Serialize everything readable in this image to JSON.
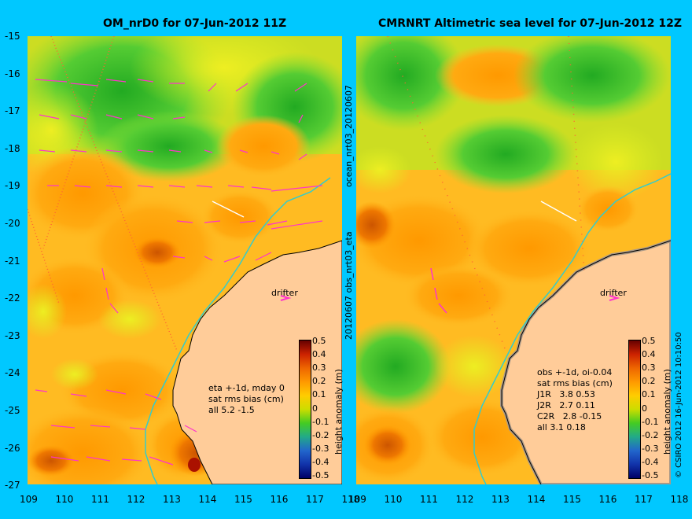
{
  "left_panel": {
    "title": "OM_nrD0 for 07-Jun-2012 11Z",
    "stats_lines": [
      "eta +-1d, mday 0",
      "sat rms bias (cm)",
      "all 5.2 -1.5"
    ],
    "drifter_label": "drifter"
  },
  "right_panel": {
    "title": "CMRNRT Altimetric sea level  for 07-Jun-2012 12Z",
    "stats_lines": [
      "obs +-1d, oi-0.04",
      "sat rms bias (cm)",
      "J1R   3.8 0.53",
      "J2R   2.7 0.11",
      "C2R   2.8 -0.15",
      "all 3.1 0.18"
    ],
    "drifter_label": "drifter"
  },
  "axes": {
    "lat_ticks": [
      "-15",
      "-16",
      "-17",
      "-18",
      "-19",
      "-20",
      "-21",
      "-22",
      "-23",
      "-24",
      "-25",
      "-26",
      "-27"
    ],
    "lon_ticks": [
      "109",
      "110",
      "111",
      "112",
      "113",
      "114",
      "115",
      "116",
      "117",
      "118"
    ],
    "lon_range": [
      109,
      118
    ],
    "lat_range": [
      -27,
      -15
    ]
  },
  "colorbar": {
    "label": "height anomaly (m)",
    "ticks": [
      "0.5",
      "0.4",
      "0.3",
      "0.2",
      "0.1",
      "0",
      "-0.1",
      "-0.2",
      "-0.3",
      "-0.4",
      "-0.5"
    ],
    "range": [
      -0.5,
      0.5
    ]
  },
  "middle_labels": {
    "top": "ocean_nrt03_20120607",
    "bottom": "20120607 obs_nrt03_eta"
  },
  "credit": "© CSIRO 2012   16-Jun-2012 10:10:50",
  "colors": {
    "background": "#00c8ff",
    "land": "#ffcc99",
    "coast": "#000000",
    "isobath": "#33cccc",
    "velocity_arrows": "#ff33cc",
    "track_points": "#ff6633"
  }
}
